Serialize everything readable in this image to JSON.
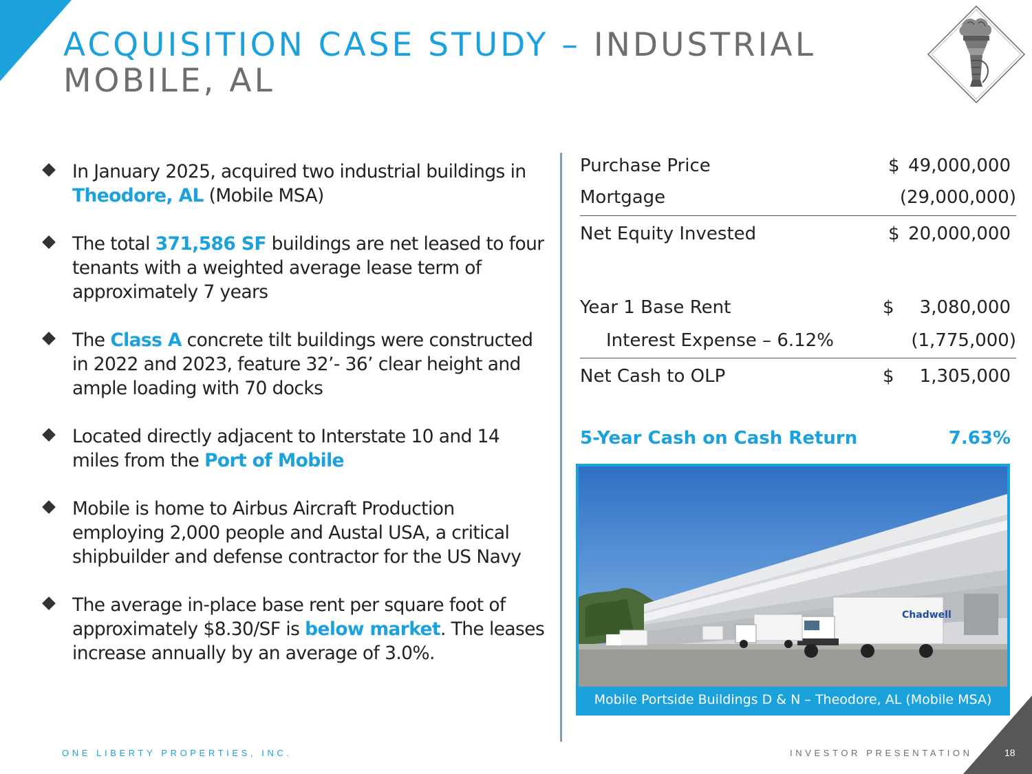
{
  "header": {
    "title_blue": "ACQUISITION CASE STUDY –",
    "title_gray_1": "INDUSTRIAL",
    "title_gray_2": "MOBILE, AL"
  },
  "bullets": [
    {
      "parts": [
        "In January 2025, acquired two industrial buildings in ",
        "Theodore, AL",
        " (Mobile MSA)"
      ]
    },
    {
      "parts": [
        "The total ",
        "371,586 SF",
        " buildings are net leased to four tenants with a weighted average lease term of approximately 7 years"
      ]
    },
    {
      "parts": [
        "The ",
        "Class A",
        " concrete tilt buildings were constructed in 2022 and 2023, feature 32’- 36’ clear height and ample loading with 70 docks"
      ]
    },
    {
      "parts": [
        "Located directly adjacent to Interstate 10 and 14 miles from the ",
        "Port of Mobile",
        ""
      ]
    },
    {
      "text": "Mobile is home to Airbus Aircraft Production employing 2,000 people and Austal USA, a critical shipbuilder and defense contractor for the US Navy"
    },
    {
      "parts": [
        "The average in-place base rent per square foot of approximately $8.30/SF is ",
        "below market",
        ". The leases increase annually by an average of 3.0%."
      ]
    }
  ],
  "financials": {
    "purchase_price": {
      "label": "Purchase Price",
      "currency": "$",
      "value": "49,000,000"
    },
    "mortgage": {
      "label": "Mortgage",
      "value": "(29,000,000)"
    },
    "net_equity": {
      "label": "Net Equity Invested",
      "currency": "$",
      "value": "20,000,000"
    },
    "base_rent": {
      "label": "Year 1 Base Rent",
      "currency": "$",
      "value": "3,080,000"
    },
    "interest": {
      "label": "Interest Expense – 6.12%",
      "value": "(1,775,000)"
    },
    "net_cash": {
      "label": "Net Cash to OLP",
      "currency": "$",
      "value": "1,305,000"
    },
    "coc": {
      "label": "5-Year Cash on Cash Return",
      "value": "7.63%"
    }
  },
  "photo": {
    "caption": "Mobile Portside Buildings D & N – Theodore, AL (Mobile MSA)",
    "truck_brand": "Chadwell"
  },
  "footer": {
    "company": "ONE LIBERTY PROPERTIES, INC.",
    "doc": "INVESTOR PRESENTATION",
    "page": "18"
  },
  "colors": {
    "accent": "#1ba1dc",
    "gray": "#6d6e71",
    "dark": "#555759"
  }
}
